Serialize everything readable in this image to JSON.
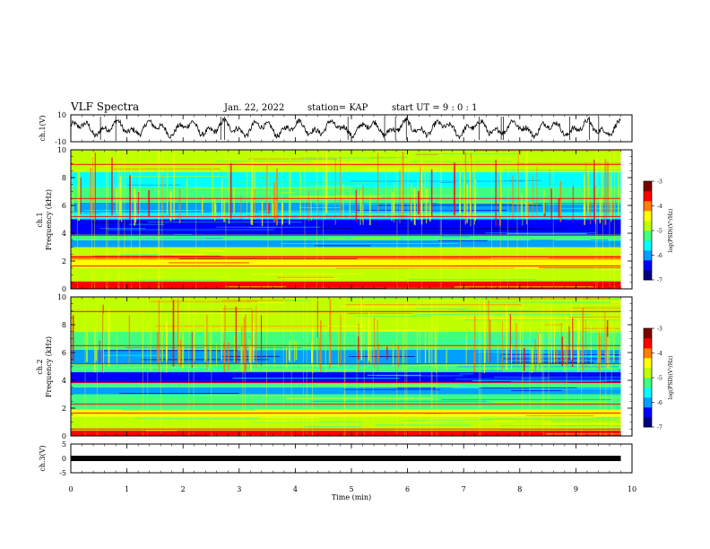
{
  "header": {
    "title": "VLF Spectra",
    "date": "Jan. 22, 2022",
    "station": "station= KAP",
    "start": "start  UT =  9 : 0  : 1"
  },
  "colors": {
    "spectrogram_colormap": [
      "#000080",
      "#0000ff",
      "#00a0ff",
      "#00ffff",
      "#40ff80",
      "#c0ff00",
      "#ffff00",
      "#ff8000",
      "#ff0000",
      "#800000"
    ],
    "waveform": "#000000"
  },
  "chart_data": [
    {
      "type": "line",
      "panel": "ch1-waveform",
      "ylabel": "ch.1(V)",
      "yticks": [
        "10",
        "-10"
      ],
      "ylim": [
        -10,
        10
      ],
      "xlim": [
        0,
        10
      ],
      "trace_end_min": 9.8,
      "note_shape": "noisy oscillating waveform around 0 V, amplitude ~ ±8 V"
    },
    {
      "type": "heatmap",
      "panel": "ch1-spectrogram",
      "ylabel": "ch.1\nFrequency (kHz)",
      "ylabel_line1": "ch.1",
      "ylabel_line2": "Frequency (kHz)",
      "yticks": [
        "10",
        "8",
        "6",
        "4",
        "2",
        "0"
      ],
      "ylim": [
        0,
        10
      ],
      "xlim": [
        0,
        10
      ],
      "data_end_min": 9.8,
      "colorbar": {
        "label": "log(PSD)(V²/Hz)",
        "ticks": [
          "-3",
          "-4",
          "-5",
          "-6",
          "-7"
        ],
        "range": [
          -7,
          -3
        ]
      },
      "bands": [
        {
          "f0": 0.0,
          "f1": 0.5,
          "level": -3.6
        },
        {
          "f0": 0.5,
          "f1": 1.5,
          "level": -4.6
        },
        {
          "f0": 1.5,
          "f1": 2.1,
          "level": -4.3
        },
        {
          "f0": 2.1,
          "f1": 2.4,
          "level": -3.8
        },
        {
          "f0": 2.4,
          "f1": 3.0,
          "level": -5.0
        },
        {
          "f0": 3.0,
          "f1": 3.5,
          "level": -6.2
        },
        {
          "f0": 3.5,
          "f1": 3.9,
          "level": -5.4
        },
        {
          "f0": 3.9,
          "f1": 5.0,
          "level": -6.5
        },
        {
          "f0": 5.0,
          "f1": 5.5,
          "level": -5.6
        },
        {
          "f0": 5.5,
          "f1": 6.2,
          "level": -6.1
        },
        {
          "f0": 6.2,
          "f1": 7.3,
          "level": -5.1
        },
        {
          "f0": 7.3,
          "f1": 8.4,
          "level": -5.5
        },
        {
          "f0": 8.4,
          "f1": 10.0,
          "level": -4.7
        }
      ]
    },
    {
      "type": "heatmap",
      "panel": "ch2-spectrogram",
      "ylabel_line1": "ch.2",
      "ylabel_line2": "Frequency (kHz)",
      "yticks": [
        "10",
        "8",
        "6",
        "4",
        "2",
        "0"
      ],
      "ylim": [
        0,
        10
      ],
      "xlim": [
        0,
        10
      ],
      "data_end_min": 9.8,
      "colorbar": {
        "label": "log(PSD)(V²/Hz)",
        "ticks": [
          "-3",
          "-4",
          "-5",
          "-6",
          "-7"
        ],
        "range": [
          -7,
          -3
        ]
      },
      "bands": [
        {
          "f0": 0.0,
          "f1": 0.4,
          "level": -3.6
        },
        {
          "f0": 0.4,
          "f1": 1.4,
          "level": -5.0
        },
        {
          "f0": 1.4,
          "f1": 1.9,
          "level": -4.5
        },
        {
          "f0": 1.9,
          "f1": 3.0,
          "level": -5.3
        },
        {
          "f0": 3.0,
          "f1": 3.5,
          "level": -6.3
        },
        {
          "f0": 3.5,
          "f1": 3.8,
          "level": -5.2
        },
        {
          "f0": 3.8,
          "f1": 4.6,
          "level": -6.4
        },
        {
          "f0": 4.6,
          "f1": 5.2,
          "level": -5.4
        },
        {
          "f0": 5.2,
          "f1": 6.2,
          "level": -6.3
        },
        {
          "f0": 6.2,
          "f1": 7.5,
          "level": -5.2
        },
        {
          "f0": 7.5,
          "f1": 10.0,
          "level": -4.6
        }
      ]
    },
    {
      "type": "line",
      "panel": "ch3-waveform",
      "ylabel": "ch.3(V)",
      "yticks": [
        "5",
        "0",
        "-5"
      ],
      "ylim": [
        -5,
        5
      ],
      "xlim": [
        0,
        10
      ],
      "level_V": 0,
      "trace_end_min": 9.8
    }
  ],
  "xaxis": {
    "label": "Time  (min)",
    "ticks": [
      "0",
      "1",
      "2",
      "3",
      "4",
      "5",
      "6",
      "7",
      "8",
      "9",
      "10"
    ],
    "range": [
      0,
      10
    ]
  }
}
